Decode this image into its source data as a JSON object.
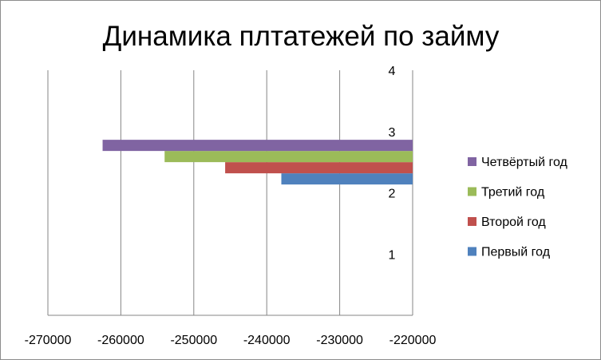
{
  "chart_data": {
    "type": "bar",
    "orientation": "horizontal",
    "title": "Динамика плтатежей по займу",
    "xlabel": "",
    "ylabel": "",
    "xlim": [
      -270000,
      -220000
    ],
    "x_ticks": [
      -270000,
      -260000,
      -250000,
      -240000,
      -230000,
      -220000
    ],
    "x_tick_labels": [
      "-270000",
      "-260000",
      "-250000",
      "-240000",
      "-230000",
      "-220000"
    ],
    "categories": [
      "1",
      "2",
      "3",
      "4"
    ],
    "grid": "vertical",
    "legend_position": "right",
    "series": [
      {
        "name": "Первый год",
        "color": "#4f81bd",
        "values": [
          null,
          null,
          -238000,
          null
        ]
      },
      {
        "name": "Второй год",
        "color": "#c0504d",
        "values": [
          null,
          null,
          -245700,
          null
        ]
      },
      {
        "name": "Третий год",
        "color": "#9bbb59",
        "values": [
          null,
          null,
          -254000,
          null
        ]
      },
      {
        "name": "Четвёртый год",
        "color": "#8064a2",
        "values": [
          null,
          null,
          -262500,
          null
        ]
      }
    ]
  }
}
